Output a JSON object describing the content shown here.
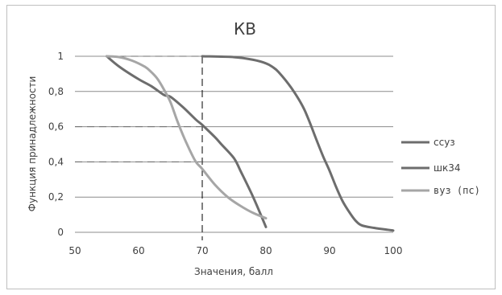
{
  "chart_data": {
    "type": "line",
    "title": "КВ",
    "xlabel": "Значения, балл",
    "ylabel": "Функция принадлежности",
    "xlim": [
      50,
      100
    ],
    "ylim": [
      0,
      1
    ],
    "x_ticks": [
      "50",
      "60",
      "70",
      "80",
      "90",
      "100"
    ],
    "y_ticks": [
      "0",
      "0,2",
      "0,4",
      "0,6",
      "0,8",
      "1"
    ],
    "grid": "horizontal",
    "legend_position": "right",
    "series": [
      {
        "name": "ссуз",
        "color": "#6d6d6d",
        "points": [
          [
            70,
            1
          ],
          [
            75,
            0.995
          ],
          [
            78,
            0.98
          ],
          [
            80,
            0.96
          ],
          [
            81,
            0.94
          ],
          [
            82,
            0.91
          ],
          [
            84,
            0.82
          ],
          [
            86,
            0.7
          ],
          [
            88,
            0.52
          ],
          [
            89,
            0.43
          ],
          [
            90,
            0.35
          ],
          [
            91,
            0.26
          ],
          [
            92,
            0.18
          ],
          [
            93,
            0.12
          ],
          [
            94,
            0.07
          ],
          [
            95,
            0.04
          ],
          [
            97,
            0.025
          ],
          [
            99,
            0.015
          ],
          [
            100,
            0.01
          ]
        ]
      },
      {
        "name": "шк34",
        "color": "#6d6d6d",
        "points": [
          [
            55,
            1
          ],
          [
            57,
            0.94
          ],
          [
            60,
            0.87
          ],
          [
            62,
            0.83
          ],
          [
            64,
            0.78
          ],
          [
            65,
            0.77
          ],
          [
            67,
            0.71
          ],
          [
            69,
            0.64
          ],
          [
            70,
            0.61
          ],
          [
            72,
            0.54
          ],
          [
            73,
            0.5
          ],
          [
            75,
            0.42
          ],
          [
            76,
            0.35
          ],
          [
            78,
            0.2
          ],
          [
            80,
            0.03
          ]
        ]
      },
      {
        "name": "вуз (пс)",
        "color": "#a6a6a6",
        "points": [
          [
            55,
            1
          ],
          [
            57,
            0.995
          ],
          [
            59,
            0.975
          ],
          [
            61,
            0.94
          ],
          [
            62,
            0.91
          ],
          [
            63,
            0.87
          ],
          [
            64,
            0.81
          ],
          [
            65,
            0.74
          ],
          [
            66,
            0.64
          ],
          [
            67,
            0.55
          ],
          [
            68,
            0.47
          ],
          [
            69,
            0.4
          ],
          [
            70,
            0.36
          ],
          [
            72,
            0.27
          ],
          [
            74,
            0.2
          ],
          [
            76,
            0.15
          ],
          [
            78,
            0.11
          ],
          [
            80,
            0.08
          ]
        ]
      }
    ],
    "reference_lines": {
      "style": "dashed",
      "vertical_x": 70,
      "horizontal": [
        {
          "y": 1,
          "x_from": 55,
          "x_to": 70
        },
        {
          "y": 0.6,
          "x_from": 50,
          "x_to": 70
        },
        {
          "y": 0.4,
          "x_from": 50,
          "x_to": 70
        }
      ]
    }
  }
}
